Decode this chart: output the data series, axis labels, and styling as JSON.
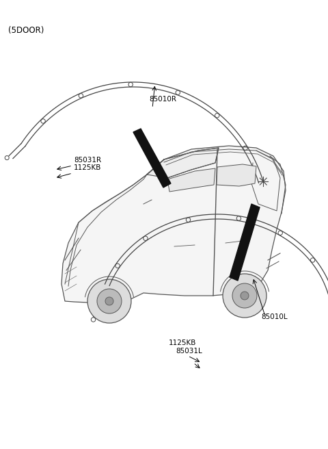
{
  "title": "(5DOOR)",
  "bg_color": "#ffffff",
  "text_color": "#000000",
  "label_85010R": "85010R",
  "label_85031R": "85031R",
  "label_1125KB_top": "1125KB",
  "label_85010L": "85010L",
  "label_85031L": "85031L",
  "label_1125KB_bot": "1125KB",
  "line_color": "#444444",
  "thick_strip_color": "#111111",
  "car_line_color": "#555555",
  "car_fill_color": "#f8f8f8"
}
